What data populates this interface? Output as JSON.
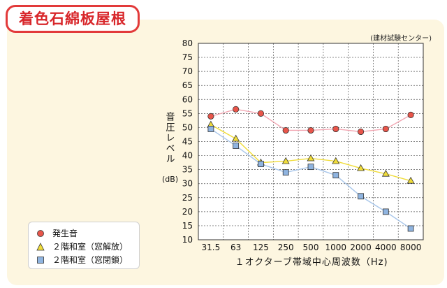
{
  "header": {
    "title": "着色石綿板屋根"
  },
  "source_label": "(建材試験センター)",
  "legend": {
    "items": [
      {
        "label": "発生音",
        "marker": "circle"
      },
      {
        "label": "２階和室（窓解放）",
        "marker": "triangle"
      },
      {
        "label": "２階和室（窓閉鎖）",
        "marker": "square"
      }
    ]
  },
  "chart_data": {
    "type": "line",
    "title": "",
    "xlabel": "１オクターブ帯域中心周波数（Hz)",
    "ylabel": "音圧レベル",
    "yunit": "(dB)",
    "categories": [
      "31.5",
      "63",
      "125",
      "250",
      "500",
      "1000",
      "2000",
      "4000",
      "8000"
    ],
    "ylim": [
      10,
      80
    ],
    "yticks": [
      10,
      15,
      20,
      25,
      30,
      35,
      40,
      45,
      50,
      55,
      60,
      65,
      70,
      75,
      80
    ],
    "grid": true,
    "legend_position": "bottom-left",
    "series": [
      {
        "name": "発生音",
        "marker": "circle",
        "fill": "#e8554a",
        "line_color": "#f2a6b2",
        "values": [
          54,
          56.5,
          55,
          49,
          49,
          49.5,
          48.5,
          49.5,
          54.5
        ]
      },
      {
        "name": "２階和室（窓解放）",
        "marker": "triangle",
        "fill": "#f0dc3a",
        "line_color": "#f0dc3a",
        "values": [
          51,
          46,
          37.5,
          38,
          39,
          38,
          35.5,
          33.5,
          31
        ]
      },
      {
        "name": "２階和室（窓閉鎖）",
        "marker": "square",
        "fill": "#8fb4e0",
        "line_color": "#a8c6ea",
        "values": [
          49.5,
          43.5,
          37,
          34,
          36,
          33,
          25.5,
          20,
          14
        ]
      }
    ]
  }
}
